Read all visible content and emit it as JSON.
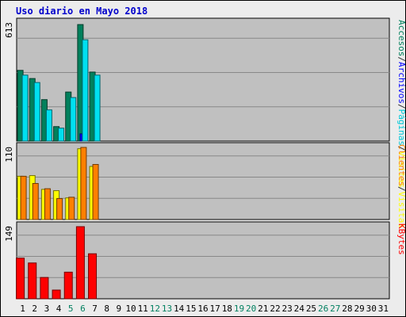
{
  "chart_data": {
    "type": "bar",
    "title": "Uso diario en Mayo 2018",
    "categories": [
      "1",
      "2",
      "3",
      "4",
      "5",
      "6",
      "7",
      "8",
      "9",
      "10",
      "11",
      "12",
      "13",
      "14",
      "15",
      "16",
      "17",
      "18",
      "19",
      "20",
      "21",
      "22",
      "23",
      "24",
      "25",
      "26",
      "27",
      "28",
      "29",
      "30",
      "31"
    ],
    "weekend_days": [
      "5",
      "6",
      "12",
      "13",
      "19",
      "20",
      "26",
      "27"
    ],
    "grid": true,
    "panels": [
      {
        "max_label": "613",
        "legend": [
          "Accesos",
          "/",
          "Archivos",
          "/",
          "Páginas",
          "/",
          "Visitas"
        ],
        "legend_colors": [
          "#00805c",
          "#303030",
          "#0000ff",
          "#303030",
          "#00c8d8",
          "#303030",
          "#ffff00"
        ],
        "series": [
          {
            "name": "Accesos",
            "color": "#00805c",
            "values": [
              372,
              329,
              218,
              76,
              258,
              613,
              363,
              0,
              0,
              0,
              0,
              0,
              0,
              0,
              0,
              0,
              0,
              0,
              0,
              0,
              0,
              0,
              0,
              0,
              0,
              0,
              0,
              0,
              0,
              0,
              0
            ]
          },
          {
            "name": "Archivos",
            "color": "#0000ff",
            "values": [
              0,
              0,
              0,
              0,
              0,
              38,
              0,
              0,
              0,
              0,
              0,
              0,
              0,
              0,
              0,
              0,
              0,
              0,
              0,
              0,
              0,
              0,
              0,
              0,
              0,
              0,
              0,
              0,
              0,
              0,
              0
            ]
          },
          {
            "name": "Páginas",
            "color": "#00e0f0",
            "values": [
              347,
              308,
              164,
              68,
              229,
              533,
              347,
              0,
              0,
              0,
              0,
              0,
              0,
              0,
              0,
              0,
              0,
              0,
              0,
              0,
              0,
              0,
              0,
              0,
              0,
              0,
              0,
              0,
              0,
              0,
              0
            ]
          }
        ]
      },
      {
        "max_label": "110",
        "legend": [
          "Clientes",
          "/",
          "Visitas"
        ],
        "legend_colors": [
          "#ff8000",
          "#303030",
          "#ffff00"
        ],
        "series": [
          {
            "name": "Visitas",
            "color": "#ffff00",
            "values": [
              66,
              67,
              46,
              44,
              33,
              108,
              81,
              0,
              0,
              0,
              0,
              0,
              0,
              0,
              0,
              0,
              0,
              0,
              0,
              0,
              0,
              0,
              0,
              0,
              0,
              0,
              0,
              0,
              0,
              0,
              0
            ]
          },
          {
            "name": "Clientes",
            "color": "#ff8000",
            "values": [
              66,
              55,
              47,
              32,
              34,
              110,
              84,
              0,
              0,
              0,
              0,
              0,
              0,
              0,
              0,
              0,
              0,
              0,
              0,
              0,
              0,
              0,
              0,
              0,
              0,
              0,
              0,
              0,
              0,
              0,
              0
            ]
          }
        ]
      },
      {
        "max_label": "149",
        "legend": [
          "KBytes"
        ],
        "legend_colors": [
          "#ff0000"
        ],
        "series": [
          {
            "name": "KBytes",
            "color": "#ff0000",
            "values": [
              84,
              74,
              44,
              18,
              55,
              149,
              93,
              0,
              0,
              0,
              0,
              0,
              0,
              0,
              0,
              0,
              0,
              0,
              0,
              0,
              0,
              0,
              0,
              0,
              0,
              0,
              0,
              0,
              0,
              0,
              0
            ]
          }
        ]
      }
    ]
  }
}
